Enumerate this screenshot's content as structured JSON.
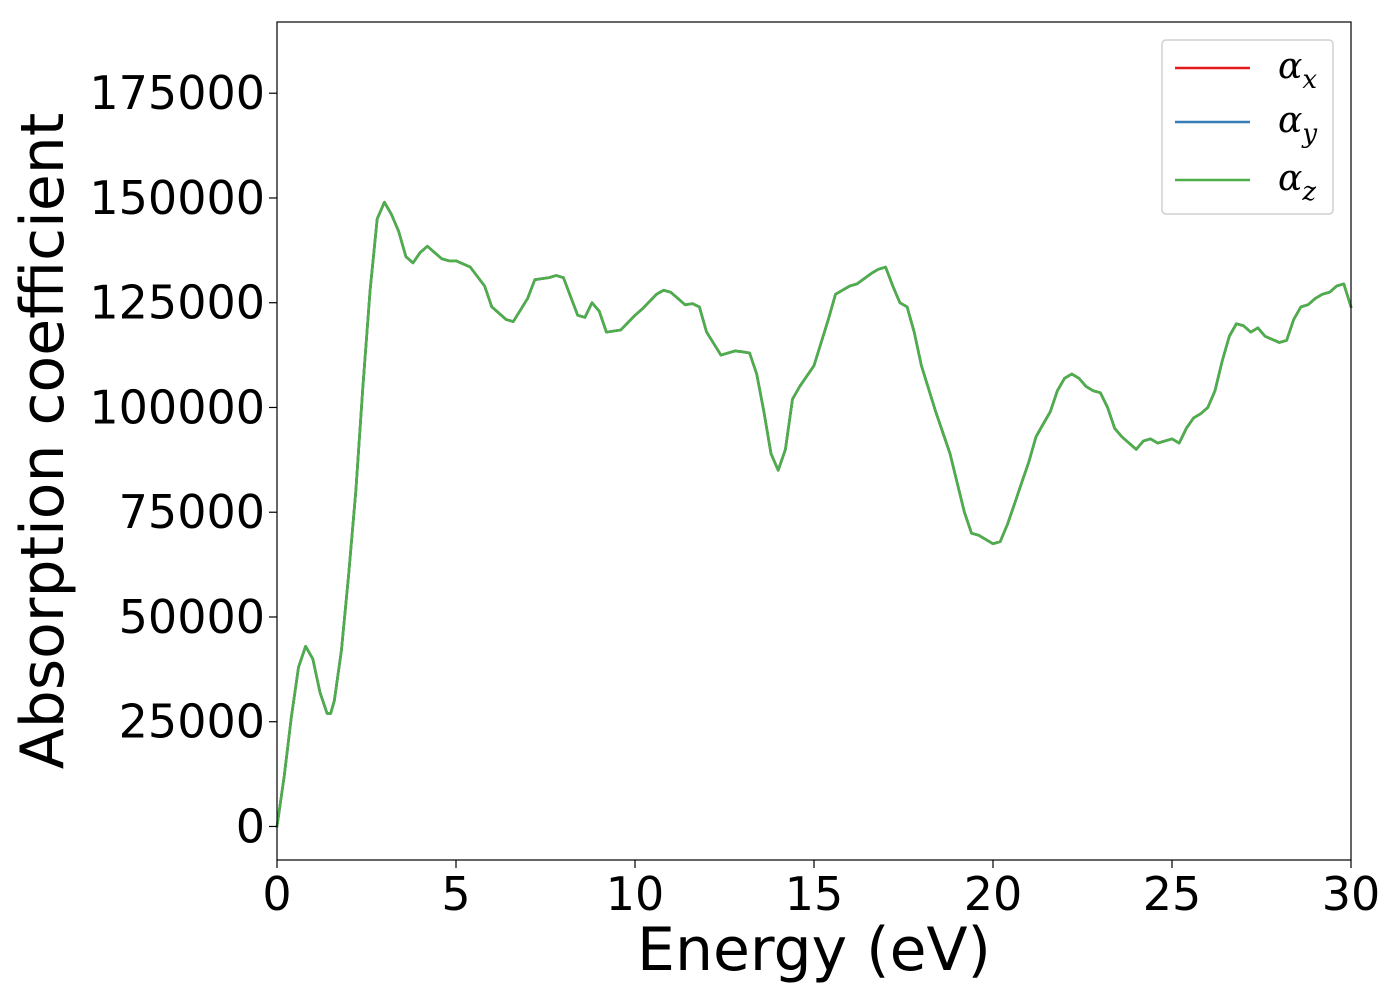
{
  "chart_data": {
    "type": "line",
    "xlabel": "Energy (eV)",
    "ylabel": "Absorption coefficient",
    "xlim": [
      0,
      30
    ],
    "ylim": [
      -8000,
      192000
    ],
    "xticks": [
      0,
      5,
      10,
      15,
      20,
      25,
      30
    ],
    "yticks": [
      0,
      25000,
      50000,
      75000,
      100000,
      125000,
      150000,
      175000
    ],
    "xtick_labels": [
      "0",
      "5",
      "10",
      "15",
      "20",
      "25",
      "30"
    ],
    "ytick_labels": [
      "0",
      "25000",
      "50000",
      "75000",
      "100000",
      "125000",
      "150000",
      "175000"
    ],
    "grid": false,
    "legend_position": "top-right",
    "x": [
      0,
      0.2,
      0.4,
      0.6,
      0.8,
      1.0,
      1.2,
      1.4,
      1.5,
      1.6,
      1.8,
      2.0,
      2.2,
      2.4,
      2.6,
      2.8,
      3.0,
      3.2,
      3.4,
      3.6,
      3.8,
      4.0,
      4.2,
      4.4,
      4.6,
      4.8,
      5.0,
      5.4,
      5.8,
      6.0,
      6.4,
      6.6,
      7.0,
      7.2,
      7.6,
      7.8,
      8.0,
      8.4,
      8.6,
      8.8,
      9.0,
      9.2,
      9.6,
      10.0,
      10.2,
      10.6,
      10.8,
      11.0,
      11.2,
      11.4,
      11.6,
      11.8,
      12.0,
      12.4,
      12.8,
      13.0,
      13.2,
      13.4,
      13.6,
      13.8,
      14.0,
      14.2,
      14.4,
      14.6,
      15.0,
      15.4,
      15.6,
      16.0,
      16.2,
      16.6,
      16.8,
      17.0,
      17.2,
      17.4,
      17.6,
      17.8,
      18.0,
      18.4,
      18.8,
      19.0,
      19.2,
      19.4,
      19.6,
      20.0,
      20.2,
      20.4,
      20.6,
      20.8,
      21.0,
      21.2,
      21.4,
      21.6,
      21.8,
      22.0,
      22.2,
      22.4,
      22.6,
      22.8,
      23.0,
      23.2,
      23.4,
      23.6,
      24.0,
      24.2,
      24.4,
      24.6,
      25.0,
      25.2,
      25.4,
      25.6,
      25.8,
      26.0,
      26.2,
      26.4,
      26.6,
      26.8,
      27.0,
      27.2,
      27.4,
      27.6,
      28.0,
      28.2,
      28.4,
      28.6,
      28.8,
      29.0,
      29.2,
      29.4,
      29.6,
      29.8,
      30.0
    ],
    "series": [
      {
        "name": "α_x",
        "label_main": "α",
        "label_sub": "x",
        "color": "#e41a1c",
        "values": [
          0,
          12000,
          26000,
          38000,
          43000,
          40000,
          32000,
          27000,
          27000,
          30000,
          42000,
          60000,
          80000,
          105000,
          128000,
          145000,
          149000,
          146000,
          142000,
          136000,
          134500,
          137000,
          138500,
          137000,
          135500,
          135000,
          135000,
          133500,
          129000,
          124000,
          121000,
          120500,
          126000,
          130500,
          131000,
          131500,
          131000,
          122000,
          121500,
          125000,
          123000,
          118000,
          118500,
          122000,
          123500,
          127000,
          128000,
          127500,
          126000,
          124500,
          124800,
          124000,
          118000,
          112500,
          113500,
          113300,
          113000,
          108000,
          99000,
          89000,
          85000,
          90000,
          102000,
          105000,
          110000,
          121000,
          127000,
          129000,
          129500,
          132000,
          133000,
          133500,
          129000,
          125000,
          124000,
          118000,
          110000,
          99000,
          89000,
          82000,
          75000,
          70000,
          69500,
          67500,
          68000,
          72000,
          77000,
          82000,
          87000,
          93000,
          96000,
          99000,
          104000,
          107000,
          108000,
          107000,
          105000,
          104000,
          103500,
          100000,
          95000,
          93000,
          90000,
          92000,
          92500,
          91500,
          92500,
          91500,
          95000,
          97500,
          98500,
          100000,
          104000,
          111000,
          117000,
          120000,
          119500,
          118000,
          119000,
          117000,
          115500,
          116000,
          121000,
          124000,
          124500,
          126000,
          127000,
          127500,
          129000,
          129500,
          124000
        ]
      },
      {
        "name": "α_y",
        "label_main": "α",
        "label_sub": "y",
        "color": "#377eb8",
        "values": [
          0,
          12000,
          26000,
          38000,
          43000,
          40000,
          32000,
          27000,
          27000,
          30000,
          42000,
          60000,
          80000,
          105000,
          128000,
          145000,
          149000,
          146000,
          142000,
          136000,
          134500,
          137000,
          138500,
          137000,
          135500,
          135000,
          135000,
          133500,
          129000,
          124000,
          121000,
          120500,
          126000,
          130500,
          131000,
          131500,
          131000,
          122000,
          121500,
          125000,
          123000,
          118000,
          118500,
          122000,
          123500,
          127000,
          128000,
          127500,
          126000,
          124500,
          124800,
          124000,
          118000,
          112500,
          113500,
          113300,
          113000,
          108000,
          99000,
          89000,
          85000,
          90000,
          102000,
          105000,
          110000,
          121000,
          127000,
          129000,
          129500,
          132000,
          133000,
          133500,
          129000,
          125000,
          124000,
          118000,
          110000,
          99000,
          89000,
          82000,
          75000,
          70000,
          69500,
          67500,
          68000,
          72000,
          77000,
          82000,
          87000,
          93000,
          96000,
          99000,
          104000,
          107000,
          108000,
          107000,
          105000,
          104000,
          103500,
          100000,
          95000,
          93000,
          90000,
          92000,
          92500,
          91500,
          92500,
          91500,
          95000,
          97500,
          98500,
          100000,
          104000,
          111000,
          117000,
          120000,
          119500,
          118000,
          119000,
          117000,
          115500,
          116000,
          121000,
          124000,
          124500,
          126000,
          127000,
          127500,
          129000,
          129500,
          124000
        ]
      },
      {
        "name": "α_z",
        "label_main": "α",
        "label_sub": "z",
        "color": "#4daf4a",
        "values": [
          0,
          12000,
          26000,
          38000,
          43000,
          40000,
          32000,
          27000,
          27000,
          30000,
          42000,
          60000,
          80000,
          105000,
          128000,
          145000,
          149000,
          146000,
          142000,
          136000,
          134500,
          137000,
          138500,
          137000,
          135500,
          135000,
          135000,
          133500,
          129000,
          124000,
          121000,
          120500,
          126000,
          130500,
          131000,
          131500,
          131000,
          122000,
          121500,
          125000,
          123000,
          118000,
          118500,
          122000,
          123500,
          127000,
          128000,
          127500,
          126000,
          124500,
          124800,
          124000,
          118000,
          112500,
          113500,
          113300,
          113000,
          108000,
          99000,
          89000,
          85000,
          90000,
          102000,
          105000,
          110000,
          121000,
          127000,
          129000,
          129500,
          132000,
          133000,
          133500,
          129000,
          125000,
          124000,
          118000,
          110000,
          99000,
          89000,
          82000,
          75000,
          70000,
          69500,
          67500,
          68000,
          72000,
          77000,
          82000,
          87000,
          93000,
          96000,
          99000,
          104000,
          107000,
          108000,
          107000,
          105000,
          104000,
          103500,
          100000,
          95000,
          93000,
          90000,
          92000,
          92500,
          91500,
          92500,
          91500,
          95000,
          97500,
          98500,
          100000,
          104000,
          111000,
          117000,
          120000,
          119500,
          118000,
          119000,
          117000,
          115500,
          116000,
          121000,
          124000,
          124500,
          126000,
          127000,
          127500,
          129000,
          129500,
          124000
        ]
      }
    ]
  }
}
